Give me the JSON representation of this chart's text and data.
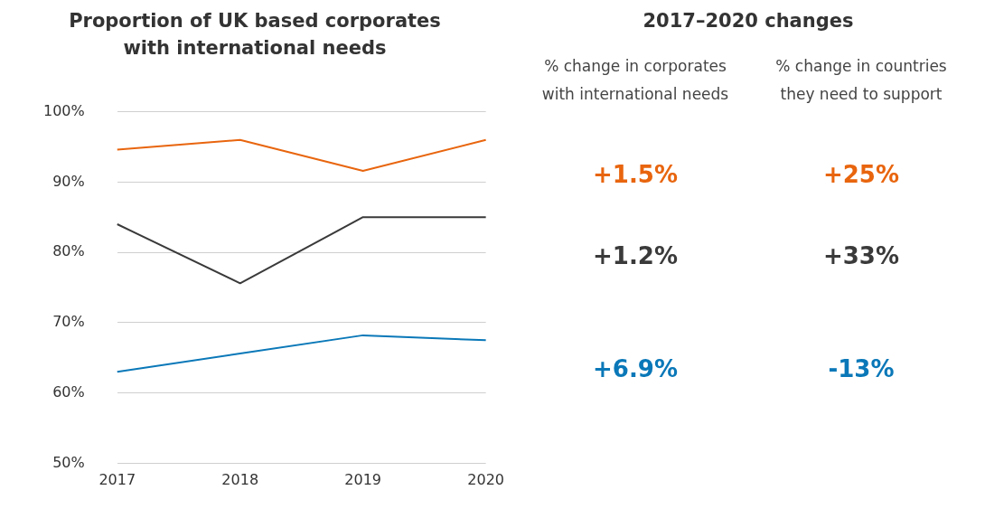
{
  "chart_data": [
    {
      "type": "line",
      "title": "Proportion of UK based corporates with international needs",
      "categories": [
        "2017",
        "2018",
        "2019",
        "2020"
      ],
      "series": [
        {
          "color": "#e8650e",
          "values": [
            94.6,
            96.0,
            91.6,
            96.0
          ]
        },
        {
          "color": "#3a3a3a",
          "values": [
            84.0,
            75.6,
            85.0,
            85.0
          ]
        },
        {
          "color": "#0a78b8",
          "values": [
            63.0,
            65.6,
            68.2,
            67.5
          ]
        }
      ],
      "ylim": [
        50,
        100
      ],
      "yticks": [
        {
          "value": 50,
          "label": "50%"
        },
        {
          "value": 60,
          "label": "60%"
        },
        {
          "value": 70,
          "label": "70%"
        },
        {
          "value": 80,
          "label": "80%"
        },
        {
          "value": 90,
          "label": "90%"
        },
        {
          "value": 100,
          "label": "100%"
        }
      ],
      "grid": "y",
      "legend": false,
      "marker": "none",
      "line_style": "solid"
    },
    {
      "type": "other",
      "title": "2017–2020 changes",
      "categories": [
        "% change in corporates with international needs",
        "% change in countries they need to support"
      ],
      "series": [
        {
          "color": "#e8650e",
          "values": [
            1.5,
            25
          ],
          "value_labels": [
            "+1.5%",
            "+25%"
          ]
        },
        {
          "color": "#3a3a3a",
          "values": [
            1.2,
            33
          ],
          "value_labels": [
            "+1.2%",
            "+33%"
          ]
        },
        {
          "color": "#0a78b8",
          "values": [
            6.9,
            -13
          ],
          "value_labels": [
            "+6.9%",
            "-13%"
          ]
        }
      ]
    }
  ]
}
